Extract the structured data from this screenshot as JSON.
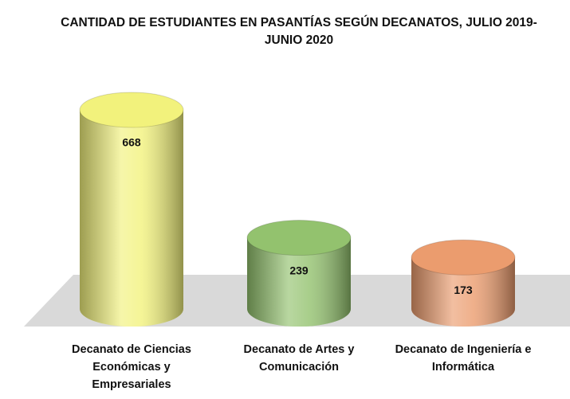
{
  "chart_data": {
    "type": "bar3d",
    "title": "CANTIDAD DE ESTUDIANTES EN PASANTÍAS SEGÚN DECANATOS, JULIO 2019-JUNIO 2020",
    "categories": [
      "Decanato de Ciencias Económicas y Empresariales",
      "Decanato de Artes y Comunicación",
      "Decanato de Ingeniería e Informática"
    ],
    "values": [
      668,
      239,
      173
    ],
    "colors": [
      "#f2f27c",
      "#93c26e",
      "#eb9c6e"
    ]
  }
}
